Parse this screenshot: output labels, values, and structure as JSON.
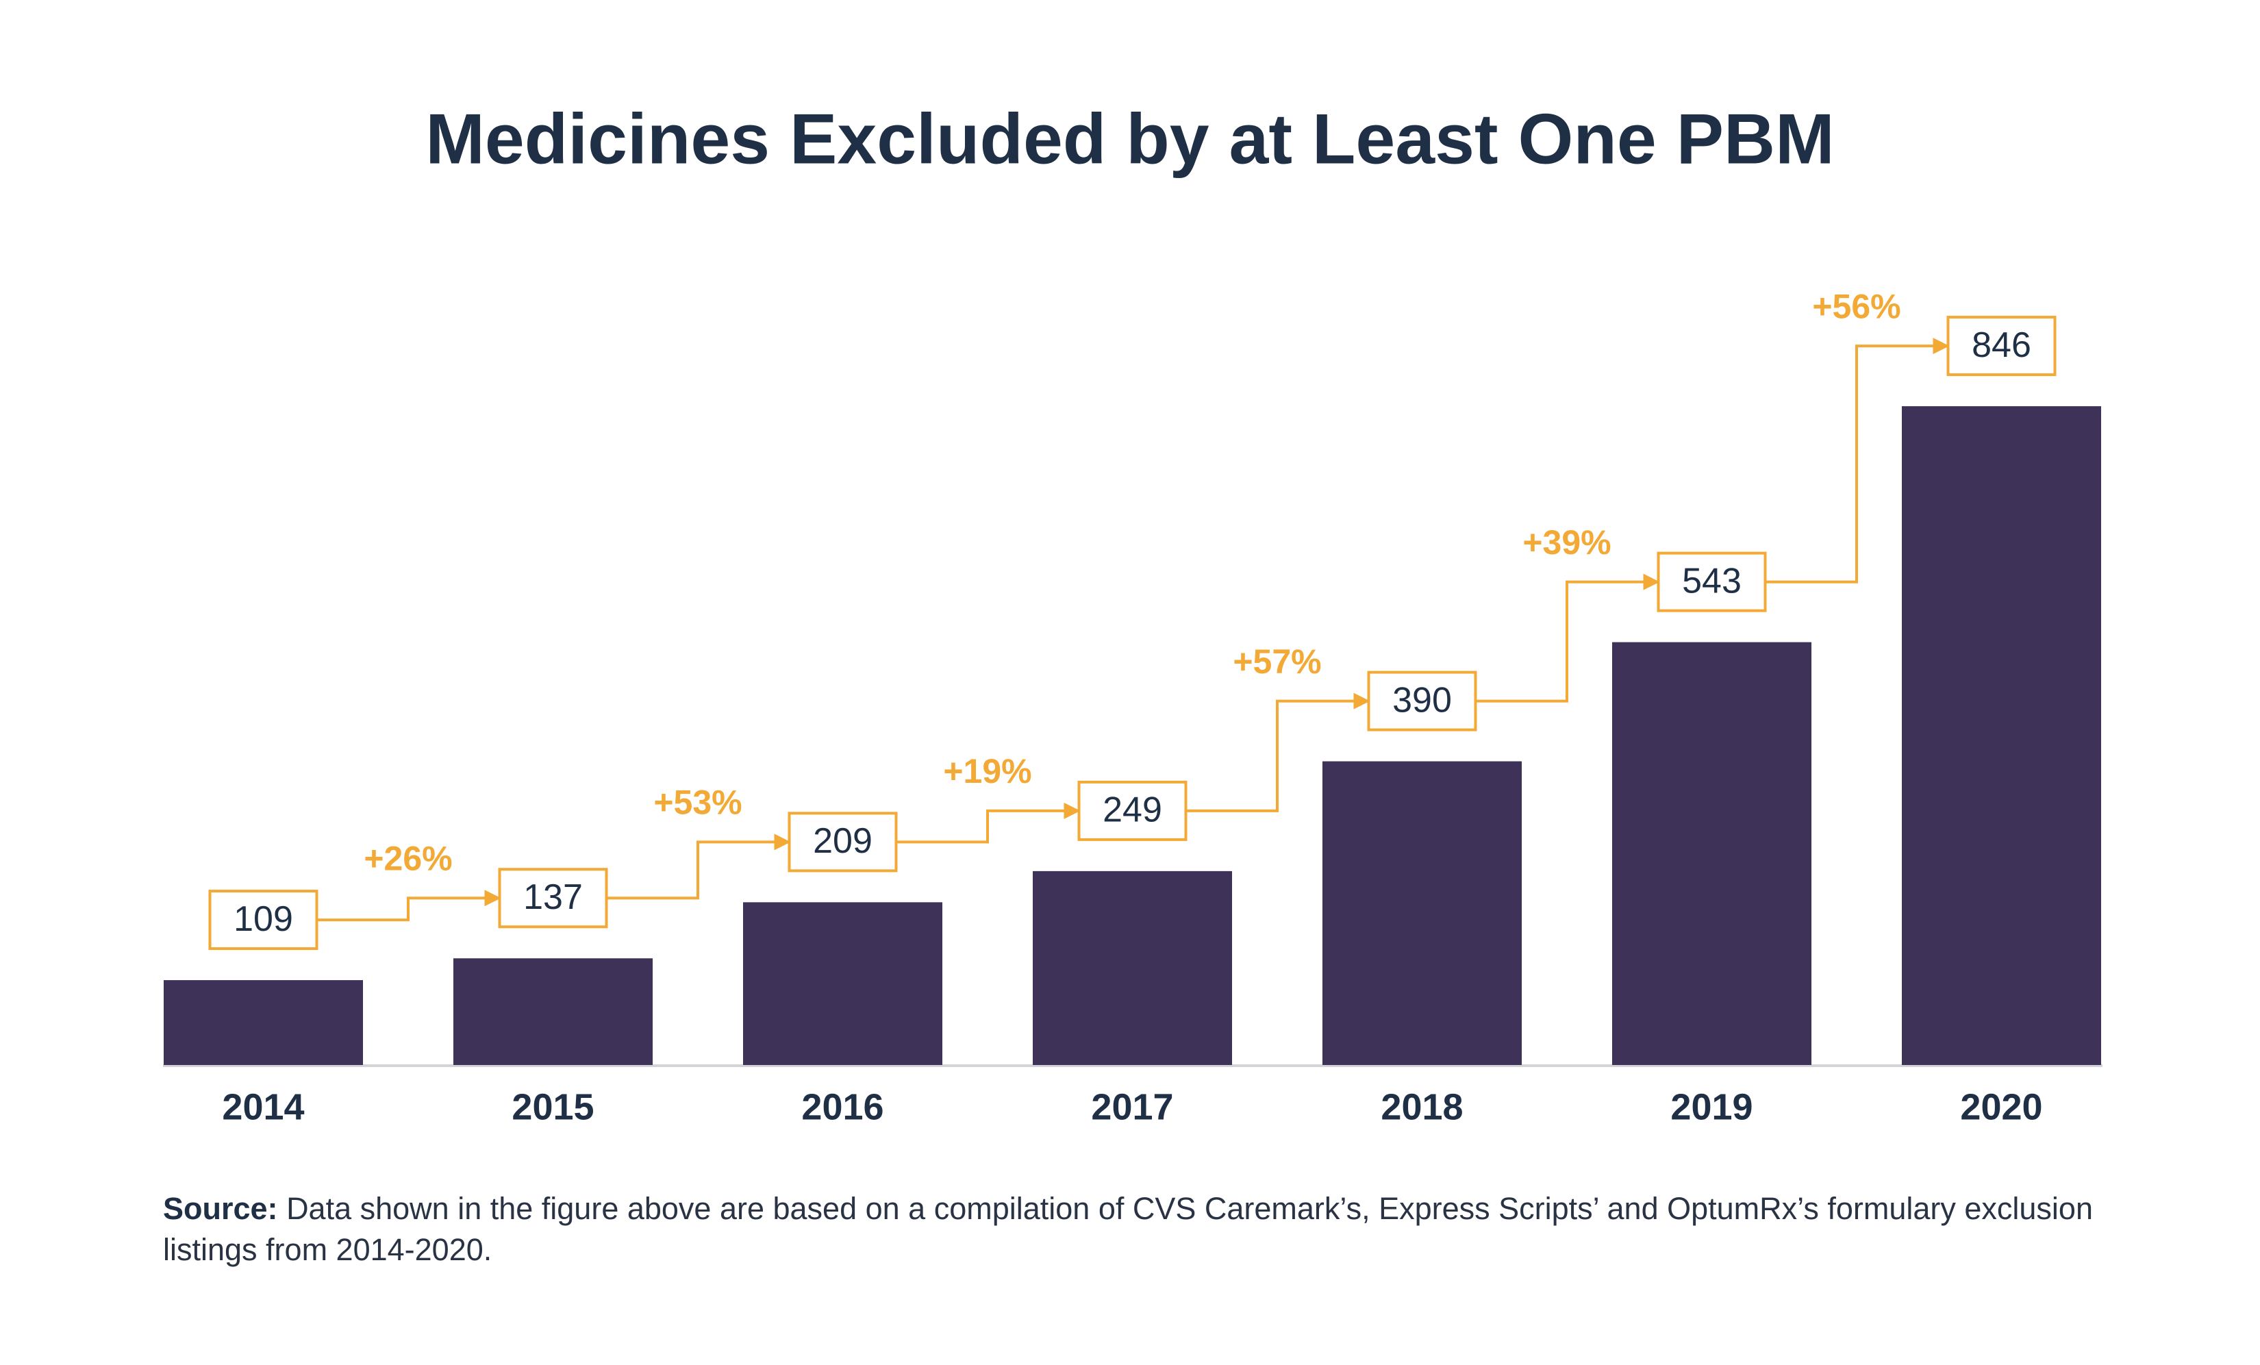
{
  "chart_data": {
    "type": "bar",
    "title": "Medicines Excluded by at Least One PBM",
    "categories": [
      "2014",
      "2015",
      "2016",
      "2017",
      "2018",
      "2019",
      "2020"
    ],
    "values": [
      109,
      137,
      209,
      249,
      390,
      543,
      846
    ],
    "color": "#3e3259",
    "annotation_color": "#f2a935",
    "annotations": [
      "+26%",
      "+53%",
      "+19%",
      "+57%",
      "+39%",
      "+56%"
    ],
    "ylim": [
      0,
      1000
    ],
    "grid": false,
    "source_label": "Source:",
    "source_text": "Data shown in the figure above are based on a compilation of CVS Caremark’s, Express Scripts’ and OptumRx’s formulary exclusion listings from 2014-2020."
  }
}
